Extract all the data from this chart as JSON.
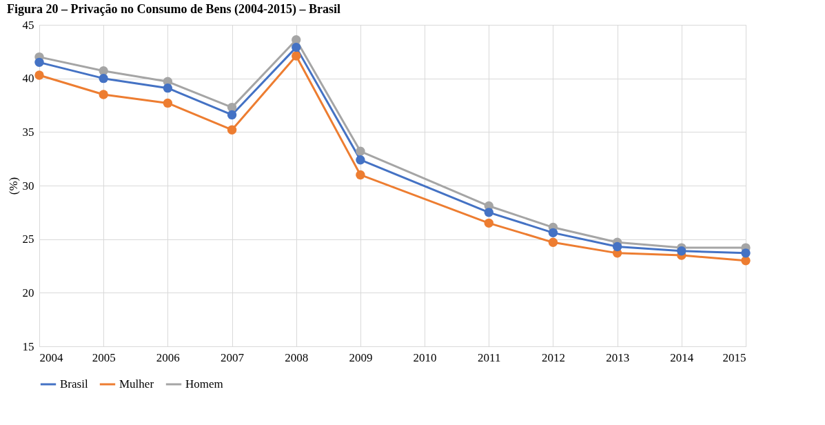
{
  "chart_data": {
    "type": "line",
    "title": "Figura 20 – Privação no Consumo de Bens (2004-2015) – Brasil",
    "ylabel": "(%)",
    "x": [
      2004,
      2005,
      2006,
      2007,
      2008,
      2009,
      2011,
      2012,
      2013,
      2014,
      2015
    ],
    "xlim": [
      2004,
      2015
    ],
    "xticks": [
      2004,
      2005,
      2006,
      2007,
      2008,
      2009,
      2010,
      2011,
      2012,
      2013,
      2014,
      2015
    ],
    "ylim": [
      15,
      45
    ],
    "yticks": [
      15,
      20,
      25,
      30,
      35,
      40,
      45
    ],
    "series": [
      {
        "name": "Brasil",
        "color": "#4472c4",
        "values": [
          41.5,
          40.0,
          39.1,
          36.6,
          42.9,
          32.4,
          27.5,
          25.6,
          24.3,
          23.9,
          23.7
        ]
      },
      {
        "name": "Mulher",
        "color": "#ed7d31",
        "values": [
          40.3,
          38.5,
          37.7,
          35.2,
          42.1,
          31.0,
          26.5,
          24.7,
          23.7,
          23.5,
          23.0
        ]
      },
      {
        "name": "Homem",
        "color": "#a5a5a5",
        "values": [
          42.0,
          40.7,
          39.7,
          37.3,
          43.6,
          33.2,
          28.1,
          26.1,
          24.7,
          24.2,
          24.2
        ]
      }
    ],
    "grid": true,
    "legend": "bottom",
    "marker": "circle",
    "line_style": "solid"
  }
}
